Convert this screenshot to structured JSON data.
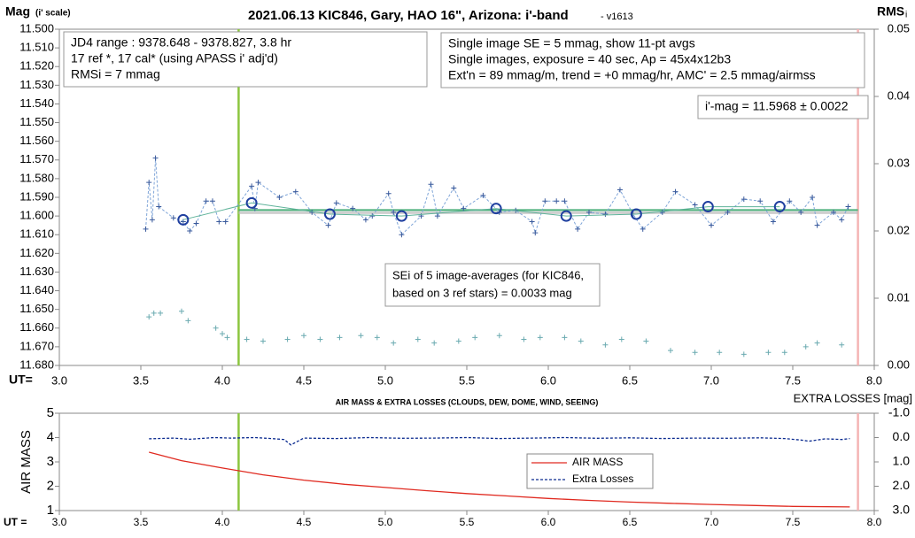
{
  "chart_data": [
    {
      "type": "line",
      "title": "2021.06.13 KIC846, Gary, HAO 16\", Arizona: i'-band",
      "subtitle": "- v1613",
      "ylabel": "Mag",
      "ylabel_note": "(i' scale)",
      "y2label": "RMS",
      "y2label_sub": "i",
      "xlabel": "UT=",
      "xlim": [
        3.0,
        8.0
      ],
      "xticks": [
        {
          "value": 3.0,
          "label": "3.0"
        },
        3.5,
        {
          "value": 4.0,
          "label": "4.0"
        },
        4.5,
        {
          "value": 5.0,
          "label": "5.0"
        },
        5.5,
        {
          "value": 6.0,
          "label": "6.0"
        },
        6.5,
        {
          "value": 7.0,
          "label": "7.0"
        },
        7.5,
        {
          "value": 8.0,
          "label": "8.0"
        }
      ],
      "ylim": [
        11.5,
        11.68
      ],
      "yreversed": true,
      "yticks": [
        {
          "value": 11.5,
          "label": "11.500"
        },
        {
          "value": 11.51,
          "label": "11.510"
        },
        {
          "value": 11.52,
          "label": "11.520"
        },
        {
          "value": 11.53,
          "label": "11.530"
        },
        {
          "value": 11.54,
          "label": "11.540"
        },
        {
          "value": 11.55,
          "label": "11.550"
        },
        {
          "value": 11.56,
          "label": "11.560"
        },
        {
          "value": 11.57,
          "label": "11.570"
        },
        {
          "value": 11.58,
          "label": "11.580"
        },
        {
          "value": 11.59,
          "label": "11.590"
        },
        {
          "value": 11.6,
          "label": "11.600"
        },
        {
          "value": 11.61,
          "label": "11.610"
        },
        {
          "value": 11.62,
          "label": "11.620"
        },
        {
          "value": 11.63,
          "label": "11.630"
        },
        {
          "value": 11.64,
          "label": "11.640"
        },
        {
          "value": 11.65,
          "label": "11.650"
        },
        {
          "value": 11.66,
          "label": "11.660"
        },
        {
          "value": 11.67,
          "label": "11.670"
        },
        {
          "value": 11.68,
          "label": "11.680"
        }
      ],
      "y2lim": [
        0,
        0.05
      ],
      "y2ticks": [
        {
          "value": 0,
          "label": "0.00"
        },
        0.01,
        0.02,
        0.03,
        0.04,
        0.05
      ],
      "vlines": [
        {
          "x": 4.1,
          "color": "#8cc63f"
        },
        {
          "x": 7.9,
          "color": "#f4b4b4"
        }
      ],
      "hline": {
        "value": 11.5968,
        "from": 4.1,
        "to": 7.9,
        "color": "#4caf7a"
      },
      "series": [
        {
          "marker": "+",
          "line": "dashed",
          "color": "#3a5a9c",
          "line_color": "#7fa5d8",
          "x": [
            3.53,
            3.55,
            3.57,
            3.59,
            3.61,
            3.7,
            3.76,
            3.8,
            3.84,
            3.9,
            3.94,
            3.98,
            4.02,
            4.18,
            4.2,
            4.22,
            4.35,
            4.45,
            4.55,
            4.65,
            4.7,
            4.8,
            4.88,
            4.92,
            5.02,
            5.05,
            5.1,
            5.22,
            5.28,
            5.32,
            5.42,
            5.48,
            5.6,
            5.7,
            5.8,
            5.9,
            5.92,
            5.98,
            6.05,
            6.1,
            6.18,
            6.25,
            6.35,
            6.44,
            6.52,
            6.58,
            6.7,
            6.78,
            6.9,
            7.0,
            7.1,
            7.2,
            7.3,
            7.38,
            7.48,
            7.55,
            7.62,
            7.65,
            7.75,
            7.8,
            7.84
          ],
          "values": [
            11.607,
            11.582,
            11.602,
            11.569,
            11.595,
            11.601,
            11.603,
            11.608,
            11.604,
            11.592,
            11.592,
            11.603,
            11.603,
            11.584,
            11.596,
            11.582,
            11.59,
            11.587,
            11.598,
            11.605,
            11.593,
            11.596,
            11.602,
            11.6,
            11.588,
            11.598,
            11.61,
            11.6,
            11.583,
            11.6,
            11.585,
            11.596,
            11.589,
            11.598,
            11.597,
            11.603,
            11.609,
            11.592,
            11.592,
            11.592,
            11.607,
            11.598,
            11.599,
            11.586,
            11.599,
            11.607,
            11.598,
            11.587,
            11.594,
            11.605,
            11.598,
            11.591,
            11.592,
            11.603,
            11.592,
            11.598,
            11.59,
            11.605,
            11.598,
            11.602,
            11.595
          ]
        },
        {
          "marker": "o",
          "line": "solid",
          "color": "#1f3f9f",
          "line_color": "#5fb39a",
          "x": [
            3.76,
            4.18,
            4.66,
            5.1,
            5.68,
            6.11,
            6.54,
            6.98,
            7.42
          ],
          "values": [
            11.602,
            11.593,
            11.599,
            11.6,
            11.596,
            11.6,
            11.599,
            11.595,
            11.595
          ]
        },
        {
          "marker": "+",
          "line": "none",
          "color": "#6aaab0",
          "x": [
            3.55,
            3.58,
            3.62,
            3.75,
            3.79,
            3.96,
            4.0,
            4.03,
            4.15,
            4.25,
            4.4,
            4.5,
            4.6,
            4.72,
            4.85,
            4.95,
            5.05,
            5.2,
            5.3,
            5.45,
            5.55,
            5.7,
            5.85,
            5.95,
            6.1,
            6.2,
            6.35,
            6.45,
            6.6,
            6.75,
            6.9,
            7.05,
            7.2,
            7.35,
            7.45,
            7.58,
            7.65,
            7.8
          ],
          "values": [
            11.654,
            11.652,
            11.652,
            11.651,
            11.656,
            11.66,
            11.663,
            11.665,
            11.666,
            11.667,
            11.666,
            11.664,
            11.666,
            11.665,
            11.664,
            11.665,
            11.668,
            11.666,
            11.668,
            11.667,
            11.665,
            11.664,
            11.666,
            11.665,
            11.665,
            11.667,
            11.669,
            11.666,
            11.667,
            11.672,
            11.673,
            11.673,
            11.674,
            11.673,
            11.673,
            11.67,
            11.668,
            11.669
          ]
        }
      ],
      "annotations": [
        {
          "lines": [
            "JD4 range : 9378.648 - 9378.827, 3.8  hr",
            "17 ref *, 17 cal* (using APASS i' adj'd)",
            "RMSi = 7 mmag"
          ]
        },
        {
          "lines": [
            "Single image SE = 5 mmag, show 11-pt avgs",
            "Single images, exposure = 40 sec, Ap = 45x4x12b3",
            "Ext'n = 89 mmag/m, trend = +0 mmag/hr, AMC' = 2.5 mmag/airmss"
          ]
        },
        {
          "lines": [
            "i'-mag = 11.5968 ± 0.0022"
          ]
        },
        {
          "lines": [
            "SEi of 5 image-averages (for KIC846,",
            "based on 3 ref stars) = 0.0033 mag"
          ]
        }
      ]
    },
    {
      "type": "line",
      "title": "AIR MASS & EXTRA LOSSES (CLOUDS, DEW, DOME, WIND, SEEING)",
      "ylabel": "AIR MASS",
      "y2label": "EXTRA LOSSES [mag]",
      "xlabel": "UT =",
      "xlim": [
        3.0,
        8.0
      ],
      "xticks": [
        {
          "value": 3.0,
          "label": "3.0"
        },
        3.5,
        {
          "value": 4.0,
          "label": "4.0"
        },
        4.5,
        {
          "value": 5.0,
          "label": "5.0"
        },
        5.5,
        {
          "value": 6.0,
          "label": "6.0"
        },
        6.5,
        {
          "value": 7.0,
          "label": "7.0"
        },
        7.5,
        {
          "value": 8.0,
          "label": "8.0"
        }
      ],
      "ylim": [
        1,
        5
      ],
      "yticks": [
        1,
        2,
        3,
        4,
        5
      ],
      "y2lim": [
        3.0,
        -1.0
      ],
      "y2ticks": [
        {
          "value": -1.0,
          "label": "-1.0"
        },
        {
          "value": 0.0,
          "label": "0.0"
        },
        {
          "value": 1.0,
          "label": "1.0"
        },
        {
          "value": 2.0,
          "label": "2.0"
        },
        {
          "value": 3.0,
          "label": "3.0"
        }
      ],
      "vlines": [
        {
          "x": 4.1,
          "color": "#8cc63f"
        },
        {
          "x": 7.9,
          "color": "#f4b4b4"
        }
      ],
      "series": [
        {
          "name": "AIR MASS",
          "color": "#e02a20",
          "line": "solid",
          "x": [
            3.55,
            3.75,
            4.0,
            4.25,
            4.5,
            4.75,
            5.0,
            5.25,
            5.5,
            5.75,
            6.0,
            6.25,
            6.5,
            6.75,
            7.0,
            7.25,
            7.5,
            7.85
          ],
          "values": [
            3.4,
            3.05,
            2.75,
            2.47,
            2.25,
            2.08,
            1.95,
            1.82,
            1.7,
            1.6,
            1.5,
            1.42,
            1.35,
            1.3,
            1.25,
            1.21,
            1.17,
            1.15
          ]
        },
        {
          "name": "Extra Losses",
          "color": "#0a2a8f",
          "line": "dashed",
          "axis": "y2",
          "x": [
            3.55,
            3.7,
            3.8,
            3.95,
            4.05,
            4.2,
            4.3,
            4.38,
            4.42,
            4.5,
            4.7,
            4.9,
            5.1,
            5.3,
            5.5,
            5.7,
            5.9,
            6.1,
            6.3,
            6.5,
            6.7,
            6.9,
            7.1,
            7.3,
            7.45,
            7.55,
            7.6,
            7.7,
            7.8,
            7.85
          ],
          "values": [
            0.05,
            0.02,
            0.07,
            0.0,
            0.02,
            0.0,
            0.04,
            0.08,
            0.3,
            0.02,
            0.04,
            0.0,
            0.03,
            0.02,
            0.0,
            0.04,
            0.02,
            0.0,
            0.03,
            0.01,
            0.04,
            0.02,
            0.03,
            0.01,
            0.04,
            0.1,
            0.15,
            0.05,
            0.08,
            0.04
          ]
        }
      ]
    }
  ]
}
